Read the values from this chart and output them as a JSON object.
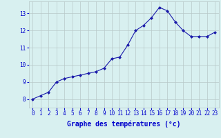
{
  "x": [
    0,
    1,
    2,
    3,
    4,
    5,
    6,
    7,
    8,
    9,
    10,
    11,
    12,
    13,
    14,
    15,
    16,
    17,
    18,
    19,
    20,
    21,
    22,
    23
  ],
  "y": [
    8.0,
    8.2,
    8.4,
    9.0,
    9.2,
    9.3,
    9.4,
    9.5,
    9.6,
    9.8,
    10.35,
    10.45,
    11.15,
    12.0,
    12.3,
    12.75,
    13.35,
    13.15,
    12.5,
    12.0,
    11.65,
    11.65,
    11.65,
    11.9
  ],
  "line_color": "#1a1aaa",
  "marker": "D",
  "marker_size": 2.0,
  "background_color": "#d8f0f0",
  "grid_color": "#b8c8c8",
  "xlabel": "Graphe des températures (°c)",
  "xlabel_color": "#0000cc",
  "xlabel_fontsize": 7.0,
  "tick_color": "#0000cc",
  "tick_fontsize": 5.5,
  "ylim": [
    7.5,
    13.7
  ],
  "xlim": [
    -0.5,
    23.5
  ],
  "yticks": [
    8,
    9,
    10,
    11,
    12,
    13
  ],
  "xticks": [
    0,
    1,
    2,
    3,
    4,
    5,
    6,
    7,
    8,
    9,
    10,
    11,
    12,
    13,
    14,
    15,
    16,
    17,
    18,
    19,
    20,
    21,
    22,
    23
  ]
}
